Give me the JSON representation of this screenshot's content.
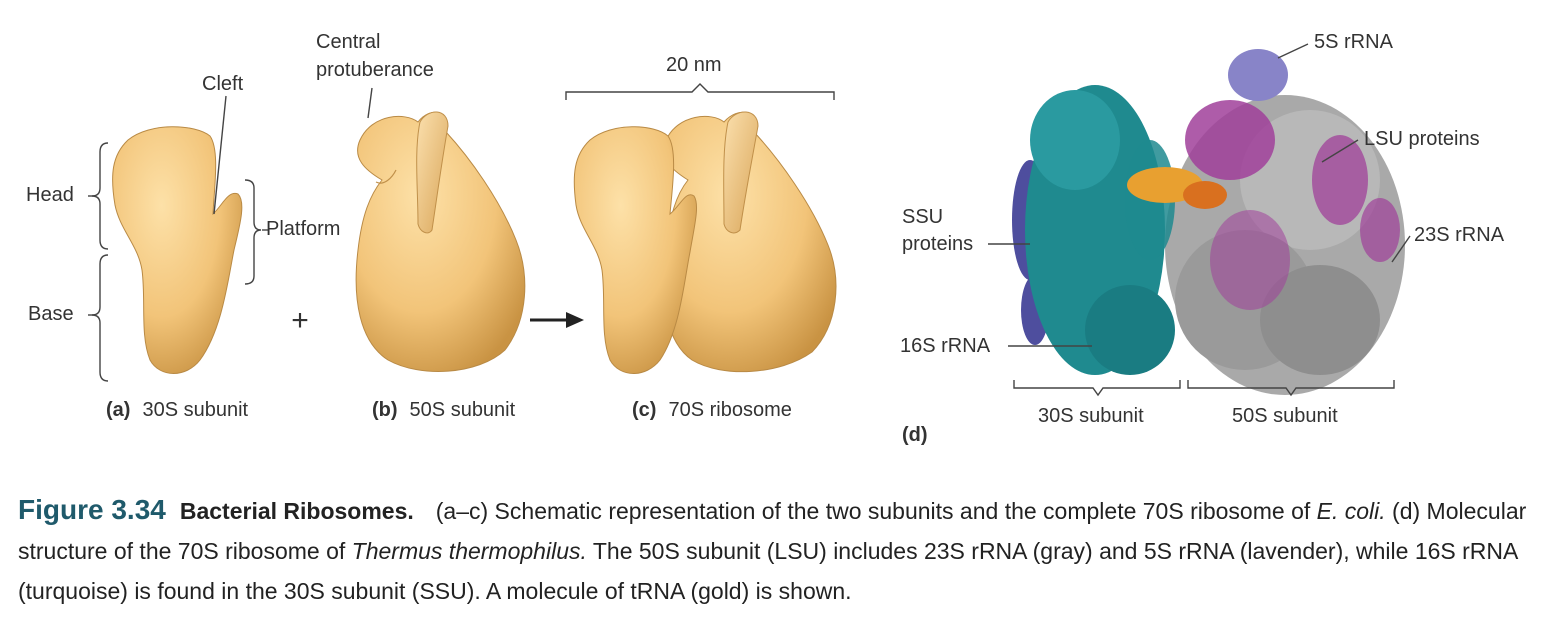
{
  "labels": {
    "cleft": "Cleft",
    "head": "Head",
    "platform": "Platform",
    "base": "Base",
    "central": "Central",
    "protuberance": "protuberance",
    "plus": "+",
    "scale": "20 nm",
    "ssu1": "SSU",
    "ssu2": "proteins",
    "rrna16s": "16S rRNA",
    "rrna5s": "5S rRNA",
    "lsu": "LSU proteins",
    "rrna23s": "23S rRNA",
    "sub30": "30S subunit",
    "sub50": "50S subunit"
  },
  "panels": {
    "a": {
      "letter": "(a)",
      "label": "30S subunit"
    },
    "b": {
      "letter": "(b)",
      "label": "50S subunit"
    },
    "c": {
      "letter": "(c)",
      "label": "70S ribosome"
    },
    "d": {
      "letter": "(d)"
    }
  },
  "caption": {
    "number": "Figure 3.34",
    "title": "Bacterial Ribosomes.",
    "t1": "(a–c) Schematic representation of the two subunits and the complete 70S ribosome of ",
    "i1": "E. coli.",
    "t2": " (d) Molecular structure of the 70S ribosome of ",
    "i2": "Thermus thermophilus.",
    "t3": " The 50S subunit (LSU) includes 23S rRNA (gray) and 5S rRNA (lavender), while 16S rRNA (turquoise) is found in the 30S subunit (SSU). A molecule of tRNA (gold) is shown."
  },
  "colors": {
    "tan": "#f2c479",
    "teal": "#1f8a8f",
    "gray": "#a4a4a4",
    "magenta": "#a0409a",
    "lavender": "#8884c8",
    "purple": "#4e4e9e",
    "gold": "#e8a030"
  }
}
